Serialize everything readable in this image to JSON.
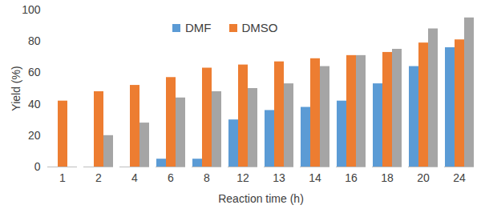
{
  "chart_data": {
    "type": "bar",
    "x_label": "Reaction time (h)",
    "y_label": "Yield (%)",
    "categories": [
      "1",
      "2",
      "4",
      "6",
      "8",
      "12",
      "13",
      "14",
      "16",
      "18",
      "20",
      "24"
    ],
    "series": [
      {
        "name": "DMF",
        "color": "#5b9bd5",
        "values": [
          0,
          0,
          0,
          5,
          5,
          30,
          36,
          38,
          42,
          53,
          64,
          76
        ]
      },
      {
        "name": "DMSO",
        "color": "#ed7d31",
        "values": [
          42,
          48,
          52,
          57,
          63,
          65,
          67,
          69,
          71,
          73,
          79,
          81
        ]
      },
      {
        "color": "#a5a5a5",
        "values": [
          0,
          20,
          28,
          44,
          48,
          50,
          53,
          64,
          71,
          75,
          88,
          95
        ]
      }
    ],
    "ylim": [
      0,
      100
    ],
    "yticks": [
      0,
      20,
      40,
      60,
      80,
      100
    ],
    "grid": false,
    "legend": "top"
  }
}
